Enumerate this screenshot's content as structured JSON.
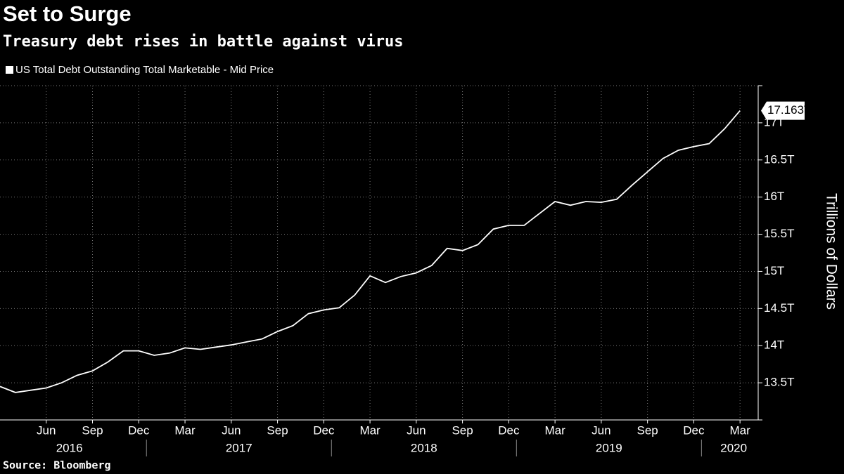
{
  "chart_data": {
    "type": "line",
    "title": "Set to Surge",
    "subtitle": "Treasury debt rises in battle against virus",
    "source": "Source: Bloomberg",
    "y_label": "Trillions of Dollars",
    "x": [
      "2016-03",
      "2016-04",
      "2016-05",
      "2016-06",
      "2016-07",
      "2016-08",
      "2016-09",
      "2016-10",
      "2016-11",
      "2016-12",
      "2017-01",
      "2017-02",
      "2017-03",
      "2017-04",
      "2017-05",
      "2017-06",
      "2017-07",
      "2017-08",
      "2017-09",
      "2017-10",
      "2017-11",
      "2017-12",
      "2018-01",
      "2018-02",
      "2018-03",
      "2018-04",
      "2018-05",
      "2018-06",
      "2018-07",
      "2018-08",
      "2018-09",
      "2018-10",
      "2018-11",
      "2018-12",
      "2019-01",
      "2019-02",
      "2019-03",
      "2019-04",
      "2019-05",
      "2019-06",
      "2019-07",
      "2019-08",
      "2019-09",
      "2019-10",
      "2019-11",
      "2019-12",
      "2020-01",
      "2020-02",
      "2020-03"
    ],
    "series": [
      {
        "name": "US Total Debt Outstanding Total Marketable - Mid Price",
        "color": "#ffffff",
        "values": [
          13.45,
          13.37,
          13.4,
          13.43,
          13.5,
          13.6,
          13.66,
          13.78,
          13.93,
          13.93,
          13.87,
          13.9,
          13.97,
          13.95,
          13.98,
          14.01,
          14.05,
          14.09,
          14.19,
          14.27,
          14.43,
          14.48,
          14.51,
          14.68,
          14.94,
          14.85,
          14.93,
          14.98,
          15.08,
          15.31,
          15.28,
          15.36,
          15.57,
          15.62,
          15.62,
          15.78,
          15.94,
          15.89,
          15.94,
          15.93,
          15.97,
          16.16,
          16.34,
          16.52,
          16.63,
          16.68,
          16.72,
          16.92,
          17.163
        ],
        "value_labels": [
          null,
          null,
          null,
          null,
          null,
          null,
          null,
          null,
          null,
          null,
          null,
          null,
          null,
          null,
          null,
          null,
          null,
          null,
          null,
          null,
          null,
          null,
          null,
          null,
          null,
          null,
          null,
          null,
          null,
          null,
          null,
          null,
          null,
          null,
          null,
          null,
          null,
          null,
          null,
          null,
          null,
          null,
          null,
          null,
          null,
          null,
          null,
          null,
          "17.163T"
        ]
      }
    ],
    "ylim": [
      13,
      17.5
    ],
    "yticks": [
      {
        "value": 13.5,
        "label": "13.5T"
      },
      {
        "value": 14,
        "label": "14T"
      },
      {
        "value": 14.5,
        "label": "14.5T"
      },
      {
        "value": 15,
        "label": "15T"
      },
      {
        "value": 15.5,
        "label": "15.5T"
      },
      {
        "value": 16,
        "label": "16T"
      },
      {
        "value": 16.5,
        "label": "16.5T"
      },
      {
        "value": 17,
        "label": "17T"
      }
    ],
    "xticks": [
      {
        "value": "2016-06",
        "label": "Jun"
      },
      {
        "value": "2016-09",
        "label": "Sep"
      },
      {
        "value": "2016-12",
        "label": "Dec"
      },
      {
        "value": "2017-03",
        "label": "Mar"
      },
      {
        "value": "2017-06",
        "label": "Jun"
      },
      {
        "value": "2017-09",
        "label": "Sep"
      },
      {
        "value": "2017-12",
        "label": "Dec"
      },
      {
        "value": "2018-03",
        "label": "Mar"
      },
      {
        "value": "2018-06",
        "label": "Jun"
      },
      {
        "value": "2018-09",
        "label": "Sep"
      },
      {
        "value": "2018-12",
        "label": "Dec"
      },
      {
        "value": "2019-03",
        "label": "Mar"
      },
      {
        "value": "2019-06",
        "label": "Jun"
      },
      {
        "value": "2019-09",
        "label": "Sep"
      },
      {
        "value": "2019-12",
        "label": "Dec"
      },
      {
        "value": "2020-03",
        "label": "Mar"
      }
    ],
    "years": [
      "2016",
      "2017",
      "2018",
      "2019",
      "2020"
    ],
    "grid": true,
    "yaxis_side": "right",
    "legend": "top-left"
  }
}
